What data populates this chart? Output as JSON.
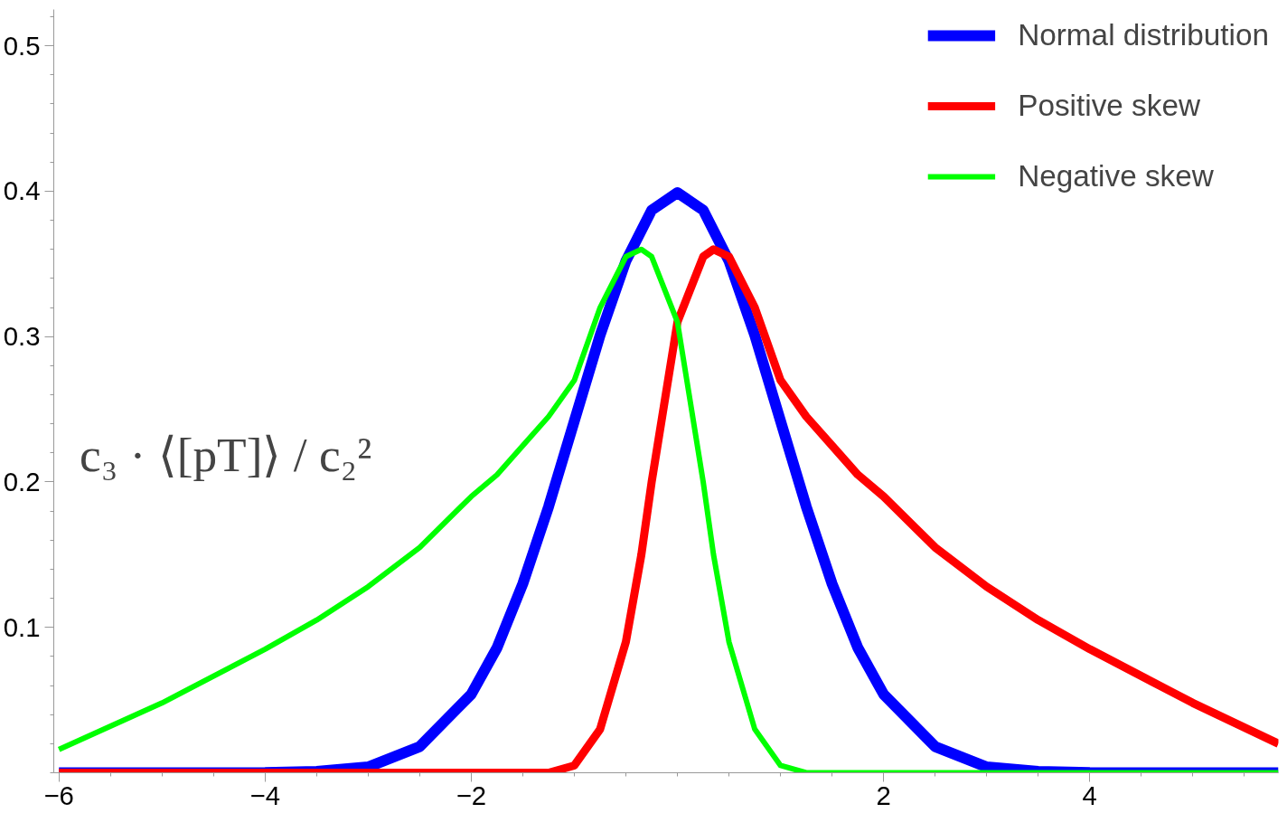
{
  "chart_data": {
    "type": "line",
    "xlim": [
      -6.05,
      5.83
    ],
    "ylim": [
      0,
      0.525
    ],
    "xticks": [
      -6,
      -4,
      -2,
      2,
      4
    ],
    "yticks": [
      0.1,
      0.2,
      0.3,
      0.4,
      0.5
    ],
    "grid": false,
    "legend": "top right",
    "marker": "none",
    "line_style": "solid",
    "annotations": [
      "c₃ · ⟨[pT]⟩ / c₂²"
    ],
    "series": [
      {
        "name": "Normal distribution",
        "color": "#0000ff",
        "x": [
          -6,
          -5,
          -4,
          -3.5,
          -3,
          -2.5,
          -2,
          -1.75,
          -1.5,
          -1.25,
          -1,
          -0.75,
          -0.5,
          -0.25,
          0,
          0.25,
          0.5,
          0.75,
          1,
          1.25,
          1.5,
          1.75,
          2,
          2.5,
          3,
          3.5,
          4,
          5,
          5.83
        ],
        "values": [
          0,
          0,
          0.0001,
          0.001,
          0.004,
          0.018,
          0.054,
          0.086,
          0.13,
          0.183,
          0.242,
          0.301,
          0.352,
          0.387,
          0.399,
          0.387,
          0.352,
          0.301,
          0.242,
          0.183,
          0.13,
          0.086,
          0.054,
          0.018,
          0.004,
          0.001,
          0.0001,
          0,
          0
        ]
      },
      {
        "name": "Positive skew",
        "color": "#ff0000",
        "x": [
          -6,
          -5,
          -4,
          -3,
          -2,
          -1.25,
          -1,
          -0.75,
          -0.5,
          -0.35,
          -0.25,
          0,
          0.25,
          0.35,
          0.5,
          0.75,
          1,
          1.25,
          1.5,
          1.75,
          2,
          2.5,
          3,
          3.5,
          4,
          5,
          5.83
        ],
        "values": [
          0,
          0,
          0,
          0,
          0,
          0,
          0.005,
          0.03,
          0.09,
          0.15,
          0.2,
          0.31,
          0.355,
          0.36,
          0.355,
          0.32,
          0.27,
          0.245,
          0.225,
          0.205,
          0.19,
          0.155,
          0.128,
          0.105,
          0.085,
          0.048,
          0.02
        ]
      },
      {
        "name": "Negative skew",
        "color": "#00ff00",
        "x": [
          -6,
          -5,
          -4,
          -3.5,
          -3,
          -2.5,
          -2,
          -1.75,
          -1.5,
          -1.25,
          -1,
          -0.75,
          -0.5,
          -0.35,
          -0.25,
          0,
          0.25,
          0.35,
          0.5,
          0.75,
          1,
          1.25,
          2,
          3,
          4,
          5,
          5.83
        ],
        "values": [
          0.016,
          0.048,
          0.085,
          0.105,
          0.128,
          0.155,
          0.19,
          0.205,
          0.225,
          0.245,
          0.27,
          0.32,
          0.355,
          0.36,
          0.355,
          0.31,
          0.2,
          0.15,
          0.09,
          0.03,
          0.005,
          0,
          0,
          0,
          0,
          0,
          0
        ]
      }
    ]
  }
}
